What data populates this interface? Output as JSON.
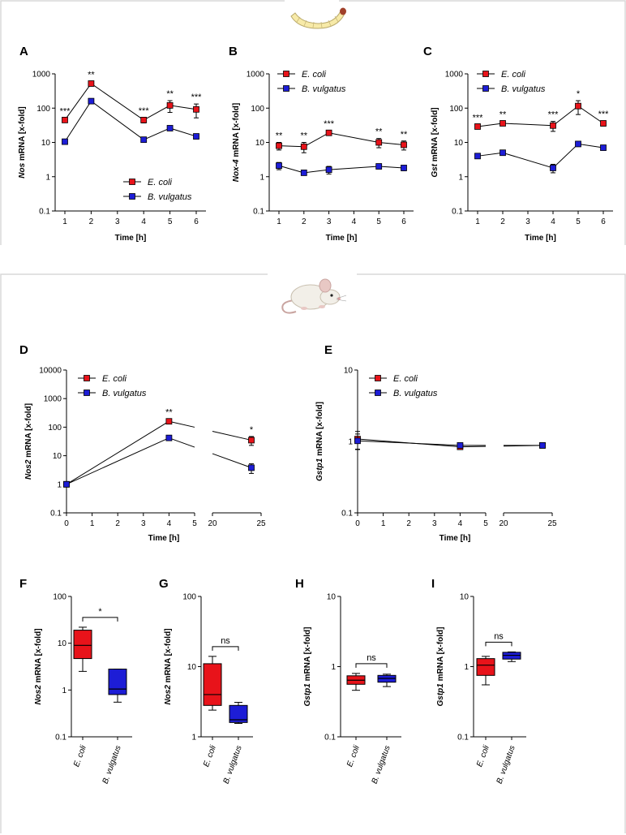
{
  "colors": {
    "ecoli": "#e8131a",
    "bvulgatus": "#1d1dd6",
    "line": "#000000",
    "frame": "#d8d8d8"
  },
  "icons": {
    "top": "larva-icon",
    "bottom": "mouse-icon"
  },
  "series_names": {
    "ecoli": "E. coli",
    "bvulgatus": "B. vulgatus"
  },
  "chart_data": [
    {
      "panel": "A",
      "type": "line",
      "log_y": true,
      "ylabel_gene": "Nos",
      "ylabel_rest": " mRNA [x-fold]",
      "xlabel": "Time [h]",
      "xlim": [
        0.5,
        6.5
      ],
      "xticks": [
        1,
        2,
        3,
        4,
        5,
        6
      ],
      "ylim": [
        0.1,
        1000
      ],
      "yticks": [
        "0.1",
        "1",
        "10",
        "100",
        "1000"
      ],
      "legend": "bottom-right",
      "series": [
        {
          "name": "E. coli",
          "key": "ecoli",
          "x": [
            1,
            2,
            4,
            5,
            6
          ],
          "values": [
            45,
            520,
            45,
            120,
            92
          ],
          "err": [
            6,
            80,
            8,
            45,
            40
          ]
        },
        {
          "name": "B. vulgatus",
          "key": "bvulgatus",
          "x": [
            1,
            2,
            4,
            5,
            6
          ],
          "values": [
            10.5,
            160,
            12,
            26,
            15
          ],
          "err": [
            1,
            15,
            1.5,
            3,
            2
          ]
        }
      ],
      "annotations": [
        {
          "x": 1,
          "label": "***"
        },
        {
          "x": 2,
          "label": "**"
        },
        {
          "x": 4,
          "label": "***"
        },
        {
          "x": 5,
          "label": "**"
        },
        {
          "x": 6,
          "label": "***"
        }
      ]
    },
    {
      "panel": "B",
      "type": "line",
      "log_y": true,
      "ylabel_gene": "Nox-4",
      "ylabel_rest": " mRNA [x-fold]",
      "xlabel": "Time [h]",
      "xlim": [
        0.5,
        6.5
      ],
      "xticks": [
        1,
        2,
        3,
        4,
        5,
        6
      ],
      "ylim": [
        0.1,
        1000
      ],
      "yticks": [
        "0.1",
        "1",
        "10",
        "100",
        "1000"
      ],
      "legend": "top-left",
      "series": [
        {
          "name": "E. coli",
          "key": "ecoli",
          "x": [
            1,
            2,
            3,
            5,
            6
          ],
          "values": [
            8,
            7.5,
            19,
            10,
            8.5
          ],
          "err": [
            2,
            2.5,
            3,
            3,
            2.5
          ]
        },
        {
          "name": "B. vulgatus",
          "key": "bvulgatus",
          "x": [
            1,
            2,
            3,
            5,
            6
          ],
          "values": [
            2.1,
            1.3,
            1.6,
            2,
            1.8
          ],
          "err": [
            0.5,
            0.2,
            0.4,
            0.2,
            0.3
          ]
        }
      ],
      "annotations": [
        {
          "x": 1,
          "label": "**"
        },
        {
          "x": 2,
          "label": "**"
        },
        {
          "x": 3,
          "label": "***"
        },
        {
          "x": 5,
          "label": "**"
        },
        {
          "x": 6,
          "label": "**"
        }
      ]
    },
    {
      "panel": "C",
      "type": "line",
      "log_y": true,
      "ylabel_gene": "Gst",
      "ylabel_rest": " mRNA [x-fold]",
      "xlabel": "Time [h]",
      "xlim": [
        0.5,
        6.5
      ],
      "xticks": [
        1,
        2,
        3,
        4,
        5,
        6
      ],
      "ylim": [
        0.1,
        1000
      ],
      "yticks": [
        "0.1",
        "1",
        "10",
        "100",
        "1000"
      ],
      "legend": "top-left",
      "series": [
        {
          "name": "E. coli",
          "key": "ecoli",
          "x": [
            1,
            2,
            4,
            5,
            6
          ],
          "values": [
            29,
            36,
            31,
            115,
            36
          ],
          "err": [
            4,
            5,
            10,
            50,
            6
          ]
        },
        {
          "name": "B. vulgatus",
          "key": "bvulgatus",
          "x": [
            1,
            2,
            4,
            5,
            6
          ],
          "values": [
            4,
            5,
            1.8,
            9,
            7
          ],
          "err": [
            0.5,
            0.5,
            0.5,
            1,
            0.8
          ]
        }
      ],
      "annotations": [
        {
          "x": 1,
          "label": "***"
        },
        {
          "x": 2,
          "label": "**"
        },
        {
          "x": 4,
          "label": "***"
        },
        {
          "x": 5,
          "label": "*"
        },
        {
          "x": 6,
          "label": "***"
        }
      ]
    },
    {
      "panel": "D",
      "type": "line",
      "log_y": true,
      "broken_x": true,
      "ylabel_gene": "Nos2",
      "ylabel_rest": " mRNA [x-fold]",
      "xlabel": "Time [h]",
      "xlim_left": [
        0,
        5
      ],
      "xlim_right": [
        20,
        25
      ],
      "xticks_left": [
        0,
        1,
        2,
        3,
        4,
        5
      ],
      "xticks_right": [
        20,
        25
      ],
      "ylim": [
        0.1,
        10000
      ],
      "yticks": [
        "0.1",
        "1",
        "10",
        "100",
        "1000",
        "10000"
      ],
      "legend": "top-left",
      "series": [
        {
          "name": "E. coli",
          "key": "ecoli",
          "x": [
            0,
            4,
            24
          ],
          "values": [
            1,
            160,
            35
          ],
          "err": [
            0.15,
            30,
            12
          ]
        },
        {
          "name": "B. vulgatus",
          "key": "bvulgatus",
          "x": [
            0,
            4,
            24
          ],
          "values": [
            1,
            42,
            3.8
          ],
          "err": [
            0.15,
            8,
            1.4
          ]
        }
      ],
      "annotations": [
        {
          "x": 4,
          "label": "**"
        },
        {
          "x": 24,
          "label": "*"
        }
      ]
    },
    {
      "panel": "E",
      "type": "line",
      "log_y": true,
      "broken_x": true,
      "ylabel_gene": "Gstp1",
      "ylabel_rest": " mRNA [x-fold]",
      "xlabel": "Time [h]",
      "xlim_left": [
        0,
        5
      ],
      "xlim_right": [
        20,
        25
      ],
      "xticks_left": [
        0,
        1,
        2,
        3,
        4,
        5
      ],
      "xticks_right": [
        20,
        25
      ],
      "ylim": [
        0.1,
        10
      ],
      "yticks": [
        "0.1",
        "1",
        "10"
      ],
      "legend": "top-left",
      "series": [
        {
          "name": "E. coli",
          "key": "ecoli",
          "x": [
            0,
            4,
            24
          ],
          "values": [
            1.08,
            0.84,
            0.88
          ],
          "err": [
            0.3,
            0.06,
            0.05
          ]
        },
        {
          "name": "B. vulgatus",
          "key": "bvulgatus",
          "x": [
            0,
            4,
            24
          ],
          "values": [
            1.02,
            0.88,
            0.88
          ],
          "err": [
            0.25,
            0.06,
            0.05
          ]
        }
      ],
      "annotations": []
    },
    {
      "panel": "F",
      "type": "box",
      "log_y": true,
      "ylabel_gene": "Nos2",
      "ylabel_rest": " mRNA [x-fold]",
      "ylim": [
        0.1,
        100
      ],
      "yticks": [
        "0.1",
        "1",
        "10",
        "100"
      ],
      "categories": [
        "E. coli",
        "B. vulgatus"
      ],
      "boxes": [
        {
          "key": "ecoli",
          "min": 2.5,
          "q1": 4.7,
          "median": 9,
          "q3": 19,
          "max": 22
        },
        {
          "key": "bvulgatus",
          "min": 0.55,
          "q1": 0.8,
          "median": 1.05,
          "q3": 2.8,
          "max": 2.8
        }
      ],
      "significance": "*"
    },
    {
      "panel": "G",
      "type": "box",
      "log_y": true,
      "ylabel_gene": "Nos2",
      "ylabel_rest": " mRNA [x-fold]",
      "ylim": [
        1,
        100
      ],
      "yticks": [
        "1",
        "10",
        "100"
      ],
      "categories": [
        "E. coli",
        "B. vulgatus"
      ],
      "boxes": [
        {
          "key": "ecoli",
          "min": 2.4,
          "q1": 2.8,
          "median": 4,
          "q3": 11,
          "max": 14
        },
        {
          "key": "bvulgatus",
          "min": 1.55,
          "q1": 1.6,
          "median": 1.75,
          "q3": 2.8,
          "max": 3.1
        }
      ],
      "significance": "ns"
    },
    {
      "panel": "H",
      "type": "box",
      "log_y": true,
      "ylabel_gene": "Gstp1",
      "ylabel_rest": " mRNA [x-fold]",
      "ylim": [
        0.1,
        10
      ],
      "yticks": [
        "0.1",
        "1",
        "10"
      ],
      "categories": [
        "E. coli",
        "B. vulgatus"
      ],
      "boxes": [
        {
          "key": "ecoli",
          "min": 0.46,
          "q1": 0.56,
          "median": 0.64,
          "q3": 0.74,
          "max": 0.8
        },
        {
          "key": "bvulgatus",
          "min": 0.52,
          "q1": 0.6,
          "median": 0.68,
          "q3": 0.75,
          "max": 0.78
        }
      ],
      "significance": "ns"
    },
    {
      "panel": "I",
      "type": "box",
      "log_y": true,
      "ylabel_gene": "Gstp1",
      "ylabel_rest": " mRNA [x-fold]",
      "ylim": [
        0.1,
        10
      ],
      "yticks": [
        "0.1",
        "1",
        "10"
      ],
      "categories": [
        "E. coli",
        "B. vulgatus"
      ],
      "boxes": [
        {
          "key": "ecoli",
          "min": 0.55,
          "q1": 0.75,
          "median": 1.05,
          "q3": 1.3,
          "max": 1.4
        },
        {
          "key": "bvulgatus",
          "min": 1.18,
          "q1": 1.28,
          "median": 1.45,
          "q3": 1.6,
          "max": 1.62
        }
      ],
      "significance": "ns"
    }
  ]
}
